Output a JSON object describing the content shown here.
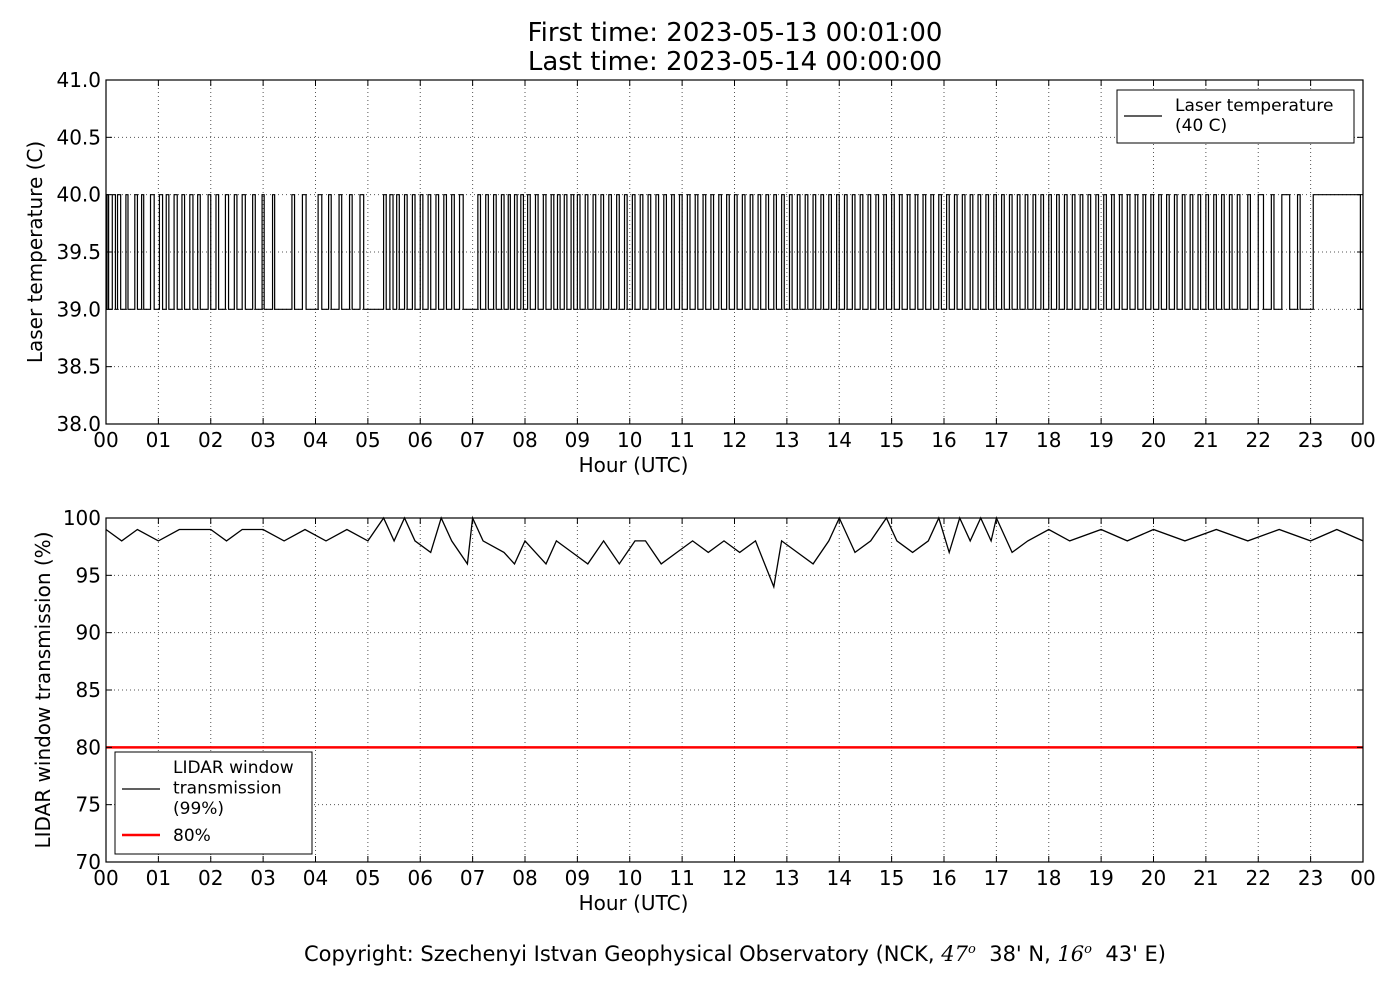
{
  "figure": {
    "title_line1": "First time: 2023-05-13 00:01:00",
    "title_line2": "Last time: 2023-05-14 00:00:00",
    "copyright": {
      "prefix": "Copyright: Szechenyi Istvan Geophysical Observatory (NCK, ",
      "lat_deg": "47",
      "lat_rest": "38' N, ",
      "lon_deg": "16",
      "lon_rest": "43' E)",
      "degree_mark": "o"
    }
  },
  "chart_data": [
    {
      "type": "line",
      "xlabel": "Hour (UTC)",
      "ylabel": "Laser temperature (C)",
      "ylim": [
        38.0,
        41.0
      ],
      "yticks": [
        "38.0",
        "38.5",
        "39.0",
        "39.5",
        "40.0",
        "40.5",
        "41.0"
      ],
      "xlim": [
        0,
        24
      ],
      "xticks": [
        "00",
        "01",
        "02",
        "03",
        "04",
        "05",
        "06",
        "07",
        "08",
        "09",
        "10",
        "11",
        "12",
        "13",
        "14",
        "15",
        "16",
        "17",
        "18",
        "19",
        "20",
        "21",
        "22",
        "23",
        "00"
      ],
      "grid": true,
      "legend_position": "upper right",
      "series": [
        {
          "name": "Laser temperature\n(40 C)",
          "color": "#000000",
          "style": "step",
          "low": 39.0,
          "high": 40.0,
          "description_values": "value alternates between 39.0 and 40.0 throughout the day",
          "high_intervals_hours": [
            [
              0.02,
              0.05
            ],
            [
              0.12,
              0.18
            ],
            [
              0.22,
              0.28
            ],
            [
              0.38,
              0.42
            ],
            [
              0.55,
              0.6
            ],
            [
              0.68,
              0.72
            ],
            [
              0.85,
              0.92
            ],
            [
              1.02,
              1.08
            ],
            [
              1.15,
              1.2
            ],
            [
              1.3,
              1.36
            ],
            [
              1.45,
              1.5
            ],
            [
              1.6,
              1.66
            ],
            [
              1.75,
              1.8
            ],
            [
              1.95,
              2.0
            ],
            [
              2.1,
              2.15
            ],
            [
              2.28,
              2.34
            ],
            [
              2.45,
              2.5
            ],
            [
              2.6,
              2.66
            ],
            [
              2.8,
              2.85
            ],
            [
              2.98,
              3.02
            ],
            [
              3.18,
              3.22
            ],
            [
              3.55,
              3.6
            ],
            [
              3.75,
              3.82
            ],
            [
              4.05,
              4.12
            ],
            [
              4.25,
              4.3
            ],
            [
              4.45,
              4.5
            ],
            [
              4.65,
              4.7
            ],
            [
              4.85,
              4.92
            ],
            [
              5.3,
              5.35
            ],
            [
              5.42,
              5.48
            ],
            [
              5.55,
              5.6
            ],
            [
              5.7,
              5.75
            ],
            [
              5.85,
              5.9
            ],
            [
              6.0,
              6.05
            ],
            [
              6.15,
              6.2
            ],
            [
              6.3,
              6.35
            ],
            [
              6.45,
              6.5
            ],
            [
              6.6,
              6.65
            ],
            [
              6.75,
              6.82
            ],
            [
              7.1,
              7.15
            ],
            [
              7.25,
              7.3
            ],
            [
              7.4,
              7.45
            ],
            [
              7.55,
              7.6
            ],
            [
              7.68,
              7.72
            ],
            [
              7.8,
              7.85
            ],
            [
              7.92,
              7.97
            ],
            [
              8.05,
              8.1
            ],
            [
              8.2,
              8.25
            ],
            [
              8.35,
              8.4
            ],
            [
              8.5,
              8.55
            ],
            [
              8.62,
              8.67
            ],
            [
              8.75,
              8.8
            ],
            [
              8.88,
              8.93
            ],
            [
              9.0,
              9.05
            ],
            [
              9.15,
              9.2
            ],
            [
              9.3,
              9.35
            ],
            [
              9.45,
              9.5
            ],
            [
              9.6,
              9.65
            ],
            [
              9.75,
              9.8
            ],
            [
              9.9,
              9.95
            ],
            [
              10.05,
              10.1
            ],
            [
              10.2,
              10.25
            ],
            [
              10.35,
              10.4
            ],
            [
              10.5,
              10.55
            ],
            [
              10.65,
              10.7
            ],
            [
              10.8,
              10.85
            ],
            [
              10.95,
              11.0
            ],
            [
              11.1,
              11.15
            ],
            [
              11.25,
              11.3
            ],
            [
              11.4,
              11.45
            ],
            [
              11.55,
              11.6
            ],
            [
              11.7,
              11.75
            ],
            [
              11.85,
              11.9
            ],
            [
              12.0,
              12.05
            ],
            [
              12.15,
              12.2
            ],
            [
              12.3,
              12.35
            ],
            [
              12.45,
              12.5
            ],
            [
              12.6,
              12.65
            ],
            [
              12.75,
              12.8
            ],
            [
              12.9,
              12.95
            ],
            [
              13.05,
              13.1
            ],
            [
              13.2,
              13.25
            ],
            [
              13.35,
              13.4
            ],
            [
              13.5,
              13.55
            ],
            [
              13.65,
              13.7
            ],
            [
              13.8,
              13.85
            ],
            [
              13.95,
              14.0
            ],
            [
              14.1,
              14.15
            ],
            [
              14.25,
              14.3
            ],
            [
              14.4,
              14.45
            ],
            [
              14.55,
              14.6
            ],
            [
              14.7,
              14.75
            ],
            [
              14.85,
              14.9
            ],
            [
              15.0,
              15.05
            ],
            [
              15.15,
              15.2
            ],
            [
              15.3,
              15.35
            ],
            [
              15.45,
              15.5
            ],
            [
              15.6,
              15.65
            ],
            [
              15.75,
              15.8
            ],
            [
              15.9,
              15.95
            ],
            [
              16.05,
              16.1
            ],
            [
              16.2,
              16.25
            ],
            [
              16.35,
              16.4
            ],
            [
              16.5,
              16.55
            ],
            [
              16.65,
              16.7
            ],
            [
              16.8,
              16.85
            ],
            [
              16.95,
              17.0
            ],
            [
              17.1,
              17.15
            ],
            [
              17.25,
              17.3
            ],
            [
              17.4,
              17.45
            ],
            [
              17.55,
              17.6
            ],
            [
              17.7,
              17.75
            ],
            [
              17.85,
              17.9
            ],
            [
              18.0,
              18.05
            ],
            [
              18.15,
              18.2
            ],
            [
              18.3,
              18.35
            ],
            [
              18.45,
              18.5
            ],
            [
              18.6,
              18.65
            ],
            [
              18.75,
              18.8
            ],
            [
              18.9,
              18.95
            ],
            [
              19.05,
              19.1
            ],
            [
              19.2,
              19.25
            ],
            [
              19.35,
              19.4
            ],
            [
              19.5,
              19.55
            ],
            [
              19.65,
              19.7
            ],
            [
              19.8,
              19.85
            ],
            [
              19.95,
              20.0
            ],
            [
              20.1,
              20.15
            ],
            [
              20.25,
              20.3
            ],
            [
              20.4,
              20.45
            ],
            [
              20.55,
              20.6
            ],
            [
              20.7,
              20.75
            ],
            [
              20.85,
              20.9
            ],
            [
              21.0,
              21.05
            ],
            [
              21.15,
              21.2
            ],
            [
              21.3,
              21.35
            ],
            [
              21.45,
              21.5
            ],
            [
              21.6,
              21.65
            ],
            [
              21.8,
              21.85
            ],
            [
              22.0,
              22.1
            ],
            [
              22.25,
              22.3
            ],
            [
              22.45,
              22.6
            ],
            [
              22.75,
              22.8
            ],
            [
              23.05,
              23.95
            ]
          ]
        }
      ]
    },
    {
      "type": "line",
      "xlabel": "Hour (UTC)",
      "ylabel": "LIDAR window transmission (%)",
      "ylim": [
        70,
        100
      ],
      "yticks": [
        "70",
        "75",
        "80",
        "85",
        "90",
        "95",
        "100"
      ],
      "xlim": [
        0,
        24
      ],
      "xticks": [
        "00",
        "01",
        "02",
        "03",
        "04",
        "05",
        "06",
        "07",
        "08",
        "09",
        "10",
        "11",
        "12",
        "13",
        "14",
        "15",
        "16",
        "17",
        "18",
        "19",
        "20",
        "21",
        "22",
        "23",
        "00"
      ],
      "grid": true,
      "legend_position": "lower left",
      "series": [
        {
          "name": "LIDAR window\ntransmission\n(99%)",
          "color": "#000000",
          "baseline": 99,
          "points": [
            [
              0,
              99
            ],
            [
              0.3,
              98
            ],
            [
              0.6,
              99
            ],
            [
              1.0,
              98
            ],
            [
              1.4,
              99
            ],
            [
              2.0,
              99
            ],
            [
              2.3,
              98
            ],
            [
              2.6,
              99
            ],
            [
              3.0,
              99
            ],
            [
              3.4,
              98
            ],
            [
              3.8,
              99
            ],
            [
              4.2,
              98
            ],
            [
              4.6,
              99
            ],
            [
              5.0,
              98
            ],
            [
              5.3,
              100
            ],
            [
              5.5,
              98
            ],
            [
              5.7,
              100
            ],
            [
              5.9,
              98
            ],
            [
              6.2,
              97
            ],
            [
              6.4,
              100
            ],
            [
              6.6,
              98
            ],
            [
              6.9,
              96
            ],
            [
              7.0,
              100
            ],
            [
              7.2,
              98
            ],
            [
              7.6,
              97
            ],
            [
              7.8,
              96
            ],
            [
              8.0,
              98
            ],
            [
              8.2,
              97
            ],
            [
              8.4,
              96
            ],
            [
              8.6,
              98
            ],
            [
              8.9,
              97
            ],
            [
              9.2,
              96
            ],
            [
              9.5,
              98
            ],
            [
              9.8,
              96
            ],
            [
              10.1,
              98
            ],
            [
              10.3,
              98
            ],
            [
              10.6,
              96
            ],
            [
              10.9,
              97
            ],
            [
              11.2,
              98
            ],
            [
              11.5,
              97
            ],
            [
              11.8,
              98
            ],
            [
              12.1,
              97
            ],
            [
              12.4,
              98
            ],
            [
              12.75,
              94
            ],
            [
              12.9,
              98
            ],
            [
              13.2,
              97
            ],
            [
              13.5,
              96
            ],
            [
              13.8,
              98
            ],
            [
              14.0,
              100
            ],
            [
              14.3,
              97
            ],
            [
              14.6,
              98
            ],
            [
              14.9,
              100
            ],
            [
              15.1,
              98
            ],
            [
              15.4,
              97
            ],
            [
              15.7,
              98
            ],
            [
              15.9,
              100
            ],
            [
              16.1,
              97
            ],
            [
              16.3,
              100
            ],
            [
              16.5,
              98
            ],
            [
              16.7,
              100
            ],
            [
              16.9,
              98
            ],
            [
              17.0,
              100
            ],
            [
              17.3,
              97
            ],
            [
              17.6,
              98
            ],
            [
              18.0,
              99
            ],
            [
              18.4,
              98
            ],
            [
              19.0,
              99
            ],
            [
              19.5,
              98
            ],
            [
              20.0,
              99
            ],
            [
              20.6,
              98
            ],
            [
              21.2,
              99
            ],
            [
              21.8,
              98
            ],
            [
              22.4,
              99
            ],
            [
              23.0,
              98
            ],
            [
              23.5,
              99
            ],
            [
              24.0,
              98
            ]
          ]
        },
        {
          "name": "80%",
          "color": "#ff0000",
          "constant": 80
        }
      ]
    }
  ]
}
